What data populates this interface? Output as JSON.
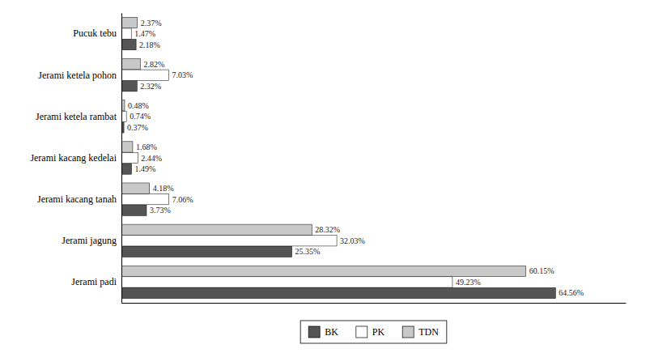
{
  "chart_data": {
    "type": "bar",
    "orientation": "horizontal",
    "categories": [
      "Jerami padi",
      "Jerami jagung",
      "Jerami kacang tanah",
      "Jerami kacang kedelai",
      "Jerami ketela rambat",
      "Jerami ketela pohon",
      "Pucuk tebu"
    ],
    "series": [
      {
        "name": "BK",
        "color": "#555555",
        "values": [
          64.56,
          25.35,
          3.73,
          1.49,
          0.37,
          2.32,
          2.18
        ],
        "value_labels": [
          "64.56%",
          "25.35%",
          "3.73%",
          "1.49%",
          "0.37%",
          "2.32%",
          "2.18%"
        ]
      },
      {
        "name": "PK",
        "color": "#ffffff",
        "values": [
          49.23,
          32.03,
          7.06,
          2.44,
          0.74,
          7.03,
          1.47
        ],
        "value_labels": [
          "49.23%",
          "32.03%",
          "7.06%",
          "2.44%",
          "0.74%",
          "7.03%",
          "1.47%"
        ]
      },
      {
        "name": "TDN",
        "color": "#c8c8c8",
        "values": [
          60.15,
          28.32,
          4.18,
          1.68,
          0.48,
          2.82,
          2.37
        ],
        "value_labels": [
          "60.15%",
          "28.32%",
          "4.18%",
          "1.68%",
          "0.48%",
          "2.82%",
          "2.37%"
        ]
      }
    ],
    "xlim": [
      0,
      75
    ],
    "data_labels": true,
    "tick_labels": "y",
    "grid": false,
    "legend": "bottom"
  }
}
